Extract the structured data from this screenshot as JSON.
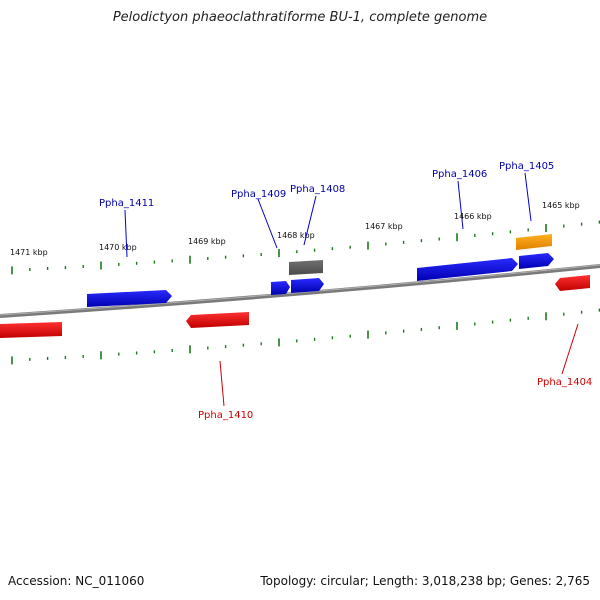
{
  "title": "Pelodictyon phaeoclathratiforme BU-1, complete genome",
  "footer": {
    "accession": "Accession: NC_011060",
    "stats": "Topology: circular; Length: 3,018,238 bp; Genes: 2,765"
  },
  "scale_labels": [
    "1471 kbp",
    "1470 kbp",
    "1469 kbp",
    "1468 kbp",
    "1467 kbp",
    "1466 kbp",
    "1465 kbp"
  ],
  "gene_labels": [
    "Ppha_1411",
    "Ppha_1409",
    "Ppha_1408",
    "Ppha_1406",
    "Ppha_1405",
    "Ppha_1410",
    "Ppha_1404"
  ],
  "colors": {
    "forward": "#0000ee",
    "reverse": "#ee0000",
    "rna": "#666666",
    "other": "#ff9900",
    "backbone": "#808080",
    "ticks": "#1a7a1a",
    "forward_label": "#0000aa",
    "reverse_label": "#cc0000"
  }
}
